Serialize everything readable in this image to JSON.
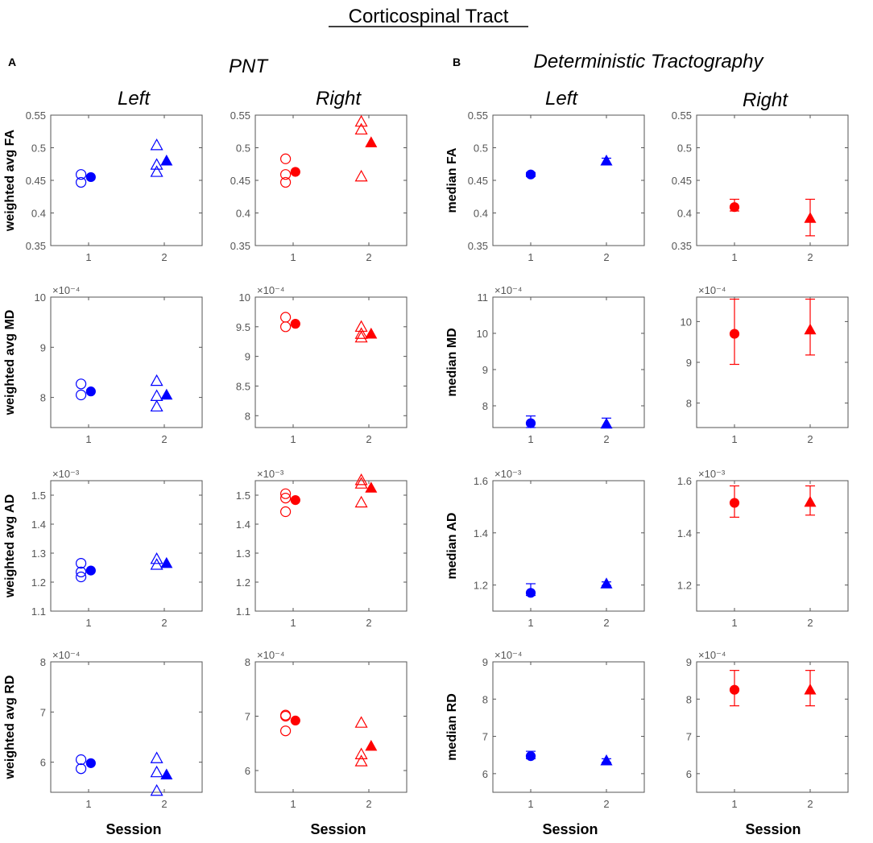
{
  "figure": {
    "main_title": "Corticospinal Tract",
    "panel_a": {
      "letter": "A",
      "title": "PNT"
    },
    "panel_b": {
      "letter": "B",
      "title": "Deterministic Tractography"
    },
    "col_labels": [
      "Left",
      "Right",
      "Left",
      "Right"
    ],
    "xlabel": "Session"
  },
  "colors": {
    "left": "#0000ff",
    "right": "#ff0000",
    "axis": "#555555"
  },
  "chart_data": [
    {
      "type": "scatter",
      "id": "a-fa-left",
      "ylabel": "weighted avg FA",
      "exponent": "",
      "ylim": [
        0.35,
        0.55
      ],
      "yticks": [
        "0.35",
        "0.4",
        "0.45",
        "0.5",
        "0.55"
      ],
      "ytick_values": [
        0.35,
        0.4,
        0.45,
        0.5,
        0.55
      ],
      "xticks": [
        "1",
        "2"
      ],
      "color": "left",
      "points": [
        {
          "x": 0.9,
          "y": 0.459,
          "m": "circle",
          "f": false
        },
        {
          "x": 0.9,
          "y": 0.447,
          "m": "circle",
          "f": false
        },
        {
          "x": 1.03,
          "y": 0.455,
          "m": "circle",
          "f": true
        },
        {
          "x": 1.9,
          "y": 0.504,
          "m": "tri",
          "f": false
        },
        {
          "x": 1.9,
          "y": 0.474,
          "m": "tri",
          "f": false
        },
        {
          "x": 1.9,
          "y": 0.463,
          "m": "tri",
          "f": false
        },
        {
          "x": 2.03,
          "y": 0.48,
          "m": "tri",
          "f": true
        }
      ]
    },
    {
      "type": "scatter",
      "id": "a-fa-right",
      "ylabel": "",
      "exponent": "",
      "ylim": [
        0.35,
        0.55
      ],
      "yticks": [
        "0.35",
        "0.4",
        "0.45",
        "0.5",
        "0.55"
      ],
      "ytick_values": [
        0.35,
        0.4,
        0.45,
        0.5,
        0.55
      ],
      "xticks": [
        "1",
        "2"
      ],
      "color": "right",
      "points": [
        {
          "x": 0.9,
          "y": 0.483,
          "m": "circle",
          "f": false
        },
        {
          "x": 0.9,
          "y": 0.459,
          "m": "circle",
          "f": false
        },
        {
          "x": 0.9,
          "y": 0.447,
          "m": "circle",
          "f": false
        },
        {
          "x": 1.03,
          "y": 0.463,
          "m": "circle",
          "f": true
        },
        {
          "x": 1.9,
          "y": 0.54,
          "m": "tri",
          "f": false
        },
        {
          "x": 1.9,
          "y": 0.528,
          "m": "tri",
          "f": false
        },
        {
          "x": 1.9,
          "y": 0.456,
          "m": "tri",
          "f": false
        },
        {
          "x": 2.03,
          "y": 0.508,
          "m": "tri",
          "f": true
        }
      ]
    },
    {
      "type": "scatter",
      "id": "b-fa-left",
      "ylabel": "median FA",
      "exponent": "",
      "ylim": [
        0.35,
        0.55
      ],
      "yticks": [
        "0.35",
        "0.4",
        "0.45",
        "0.5",
        "0.55"
      ],
      "ytick_values": [
        0.35,
        0.4,
        0.45,
        0.5,
        0.55
      ],
      "xticks": [
        "1",
        "2"
      ],
      "color": "left",
      "points": [
        {
          "x": 1,
          "y": 0.459,
          "m": "circle",
          "f": true,
          "err": [
            0.456,
            0.462
          ]
        },
        {
          "x": 2,
          "y": 0.48,
          "m": "tri",
          "f": true,
          "err": [
            0.474,
            0.484
          ]
        }
      ]
    },
    {
      "type": "scatter",
      "id": "b-fa-right",
      "ylabel": "",
      "exponent": "",
      "ylim": [
        0.35,
        0.55
      ],
      "yticks": [
        "0.35",
        "0.4",
        "0.45",
        "0.5",
        "0.55"
      ],
      "ytick_values": [
        0.35,
        0.4,
        0.45,
        0.5,
        0.55
      ],
      "xticks": [
        "1",
        "2"
      ],
      "color": "right",
      "points": [
        {
          "x": 1,
          "y": 0.409,
          "m": "circle",
          "f": true,
          "err": [
            0.403,
            0.421
          ]
        },
        {
          "x": 2,
          "y": 0.392,
          "m": "tri",
          "f": true,
          "err": [
            0.365,
            0.421
          ]
        }
      ]
    },
    {
      "type": "scatter",
      "id": "a-md-left",
      "ylabel": "weighted avg MD",
      "exponent": "×10⁻⁴",
      "ylim": [
        7.4,
        10
      ],
      "yticks": [
        "8",
        "9",
        "10"
      ],
      "ytick_values": [
        8,
        9,
        10
      ],
      "xticks": [
        "1",
        "2"
      ],
      "color": "left",
      "points": [
        {
          "x": 0.9,
          "y": 8.27,
          "m": "circle",
          "f": false
        },
        {
          "x": 0.9,
          "y": 8.05,
          "m": "circle",
          "f": false
        },
        {
          "x": 1.03,
          "y": 8.12,
          "m": "circle",
          "f": true
        },
        {
          "x": 1.9,
          "y": 8.33,
          "m": "tri",
          "f": false
        },
        {
          "x": 1.9,
          "y": 8.03,
          "m": "tri",
          "f": false
        },
        {
          "x": 1.9,
          "y": 7.82,
          "m": "tri",
          "f": false
        },
        {
          "x": 2.03,
          "y": 8.05,
          "m": "tri",
          "f": true
        }
      ]
    },
    {
      "type": "scatter",
      "id": "a-md-right",
      "ylabel": "",
      "exponent": "×10⁻⁴",
      "ylim": [
        7.8,
        10
      ],
      "yticks": [
        "8",
        "8.5",
        "9",
        "9.5",
        "10"
      ],
      "ytick_values": [
        8,
        8.5,
        9,
        9.5,
        10
      ],
      "xticks": [
        "1",
        "2"
      ],
      "color": "right",
      "points": [
        {
          "x": 0.9,
          "y": 9.66,
          "m": "circle",
          "f": false
        },
        {
          "x": 0.9,
          "y": 9.5,
          "m": "circle",
          "f": false
        },
        {
          "x": 1.03,
          "y": 9.55,
          "m": "circle",
          "f": true
        },
        {
          "x": 1.9,
          "y": 9.5,
          "m": "tri",
          "f": false
        },
        {
          "x": 1.9,
          "y": 9.38,
          "m": "tri",
          "f": false
        },
        {
          "x": 1.9,
          "y": 9.32,
          "m": "tri",
          "f": false
        },
        {
          "x": 2.03,
          "y": 9.38,
          "m": "tri",
          "f": true
        }
      ]
    },
    {
      "type": "scatter",
      "id": "b-md-left",
      "ylabel": "median MD",
      "exponent": "×10⁻⁴",
      "ylim": [
        7.4,
        11
      ],
      "yticks": [
        "8",
        "9",
        "10",
        "11"
      ],
      "ytick_values": [
        8,
        9,
        10,
        11
      ],
      "xticks": [
        "1",
        "2"
      ],
      "color": "left",
      "points": [
        {
          "x": 1,
          "y": 7.52,
          "m": "circle",
          "f": true,
          "err": [
            7.4,
            7.72
          ]
        },
        {
          "x": 2,
          "y": 7.5,
          "m": "tri",
          "f": true,
          "err": [
            7.4,
            7.66
          ]
        }
      ]
    },
    {
      "type": "scatter",
      "id": "b-md-right",
      "ylabel": "",
      "exponent": "×10⁻⁴",
      "ylim": [
        7.4,
        10.6
      ],
      "yticks": [
        "8",
        "9",
        "10"
      ],
      "ytick_values": [
        8,
        9,
        10
      ],
      "xticks": [
        "1",
        "2"
      ],
      "color": "right",
      "points": [
        {
          "x": 1,
          "y": 9.7,
          "m": "circle",
          "f": true,
          "err": [
            8.95,
            10.55
          ]
        },
        {
          "x": 2,
          "y": 9.8,
          "m": "tri",
          "f": true,
          "err": [
            9.18,
            10.55
          ]
        }
      ]
    },
    {
      "type": "scatter",
      "id": "a-ad-left",
      "ylabel": "weighted avg AD",
      "exponent": "×10⁻³",
      "ylim": [
        1.1,
        1.55
      ],
      "yticks": [
        "1.1",
        "1.2",
        "1.3",
        "1.4",
        "1.5"
      ],
      "ytick_values": [
        1.1,
        1.2,
        1.3,
        1.4,
        1.5
      ],
      "xticks": [
        "1",
        "2"
      ],
      "color": "left",
      "points": [
        {
          "x": 0.9,
          "y": 1.265,
          "m": "circle",
          "f": false
        },
        {
          "x": 0.9,
          "y": 1.235,
          "m": "circle",
          "f": false
        },
        {
          "x": 0.9,
          "y": 1.218,
          "m": "circle",
          "f": false
        },
        {
          "x": 1.03,
          "y": 1.24,
          "m": "circle",
          "f": true
        },
        {
          "x": 1.9,
          "y": 1.28,
          "m": "tri",
          "f": false
        },
        {
          "x": 1.9,
          "y": 1.26,
          "m": "tri",
          "f": false
        },
        {
          "x": 2.03,
          "y": 1.265,
          "m": "tri",
          "f": true
        }
      ]
    },
    {
      "type": "scatter",
      "id": "a-ad-right",
      "ylabel": "",
      "exponent": "×10⁻³",
      "ylim": [
        1.1,
        1.55
      ],
      "yticks": [
        "1.1",
        "1.2",
        "1.3",
        "1.4",
        "1.5"
      ],
      "ytick_values": [
        1.1,
        1.2,
        1.3,
        1.4,
        1.5
      ],
      "xticks": [
        "1",
        "2"
      ],
      "color": "right",
      "points": [
        {
          "x": 0.9,
          "y": 1.505,
          "m": "circle",
          "f": false
        },
        {
          "x": 0.9,
          "y": 1.49,
          "m": "circle",
          "f": false
        },
        {
          "x": 0.9,
          "y": 1.443,
          "m": "circle",
          "f": false
        },
        {
          "x": 1.03,
          "y": 1.483,
          "m": "circle",
          "f": true
        },
        {
          "x": 1.9,
          "y": 1.552,
          "m": "tri",
          "f": false
        },
        {
          "x": 1.9,
          "y": 1.54,
          "m": "tri",
          "f": false
        },
        {
          "x": 1.9,
          "y": 1.475,
          "m": "tri",
          "f": false
        },
        {
          "x": 2.03,
          "y": 1.525,
          "m": "tri",
          "f": true
        }
      ]
    },
    {
      "type": "scatter",
      "id": "b-ad-left",
      "ylabel": "median AD",
      "exponent": "×10⁻³",
      "ylim": [
        1.1,
        1.6
      ],
      "yticks": [
        "1.2",
        "1.4",
        "1.6"
      ],
      "ytick_values": [
        1.2,
        1.4,
        1.6
      ],
      "xticks": [
        "1",
        "2"
      ],
      "color": "left",
      "points": [
        {
          "x": 1,
          "y": 1.17,
          "m": "circle",
          "f": true,
          "err": [
            1.16,
            1.205
          ]
        },
        {
          "x": 2,
          "y": 1.205,
          "m": "tri",
          "f": true,
          "err": [
            1.198,
            1.212
          ]
        }
      ]
    },
    {
      "type": "scatter",
      "id": "b-ad-right",
      "ylabel": "",
      "exponent": "×10⁻³",
      "ylim": [
        1.1,
        1.6
      ],
      "yticks": [
        "1.2",
        "1.4",
        "1.6"
      ],
      "ytick_values": [
        1.2,
        1.4,
        1.6
      ],
      "xticks": [
        "1",
        "2"
      ],
      "color": "right",
      "points": [
        {
          "x": 1,
          "y": 1.515,
          "m": "circle",
          "f": true,
          "err": [
            1.46,
            1.58
          ]
        },
        {
          "x": 2,
          "y": 1.518,
          "m": "tri",
          "f": true,
          "err": [
            1.468,
            1.58
          ]
        }
      ]
    },
    {
      "type": "scatter",
      "id": "a-rd-left",
      "ylabel": "weighted avg RD",
      "exponent": "×10⁻⁴",
      "ylim": [
        5.4,
        8
      ],
      "yticks": [
        "6",
        "7",
        "8"
      ],
      "ytick_values": [
        6,
        7,
        8
      ],
      "xticks": [
        "1",
        "2"
      ],
      "color": "left",
      "points": [
        {
          "x": 0.9,
          "y": 6.05,
          "m": "circle",
          "f": false
        },
        {
          "x": 0.9,
          "y": 5.87,
          "m": "circle",
          "f": false
        },
        {
          "x": 1.03,
          "y": 5.98,
          "m": "circle",
          "f": true
        },
        {
          "x": 1.9,
          "y": 6.08,
          "m": "tri",
          "f": false
        },
        {
          "x": 1.9,
          "y": 5.8,
          "m": "tri",
          "f": false
        },
        {
          "x": 1.9,
          "y": 5.43,
          "m": "tri",
          "f": false
        },
        {
          "x": 2.03,
          "y": 5.75,
          "m": "tri",
          "f": true
        }
      ]
    },
    {
      "type": "scatter",
      "id": "a-rd-right",
      "ylabel": "",
      "exponent": "×10⁻⁴",
      "ylim": [
        5.6,
        8
      ],
      "yticks": [
        "6",
        "7",
        "8"
      ],
      "ytick_values": [
        6,
        7,
        8
      ],
      "xticks": [
        "1",
        "2"
      ],
      "color": "right",
      "points": [
        {
          "x": 0.9,
          "y": 7.02,
          "m": "circle",
          "f": false
        },
        {
          "x": 0.9,
          "y": 7.0,
          "m": "circle",
          "f": false
        },
        {
          "x": 0.9,
          "y": 6.73,
          "m": "circle",
          "f": false
        },
        {
          "x": 1.03,
          "y": 6.92,
          "m": "circle",
          "f": true
        },
        {
          "x": 1.9,
          "y": 6.88,
          "m": "tri",
          "f": false
        },
        {
          "x": 1.9,
          "y": 6.3,
          "m": "tri",
          "f": false
        },
        {
          "x": 1.9,
          "y": 6.17,
          "m": "tri",
          "f": false
        },
        {
          "x": 2.03,
          "y": 6.45,
          "m": "tri",
          "f": true
        }
      ]
    },
    {
      "type": "scatter",
      "id": "b-rd-left",
      "ylabel": "median RD",
      "exponent": "×10⁻⁴",
      "ylim": [
        5.5,
        9
      ],
      "yticks": [
        "6",
        "7",
        "8",
        "9"
      ],
      "ytick_values": [
        6,
        7,
        8,
        9
      ],
      "xticks": [
        "1",
        "2"
      ],
      "color": "left",
      "points": [
        {
          "x": 1,
          "y": 6.47,
          "m": "circle",
          "f": true,
          "err": [
            6.4,
            6.6
          ]
        },
        {
          "x": 2,
          "y": 6.35,
          "m": "tri",
          "f": true,
          "err": [
            6.3,
            6.4
          ]
        }
      ]
    },
    {
      "type": "scatter",
      "id": "b-rd-right",
      "ylabel": "",
      "exponent": "×10⁻⁴",
      "ylim": [
        5.5,
        9
      ],
      "yticks": [
        "6",
        "7",
        "8",
        "9"
      ],
      "ytick_values": [
        6,
        7,
        8,
        9
      ],
      "xticks": [
        "1",
        "2"
      ],
      "color": "right",
      "points": [
        {
          "x": 1,
          "y": 8.25,
          "m": "circle",
          "f": true,
          "err": [
            7.82,
            8.77
          ]
        },
        {
          "x": 2,
          "y": 8.25,
          "m": "tri",
          "f": true,
          "err": [
            7.82,
            8.77
          ]
        }
      ]
    }
  ]
}
